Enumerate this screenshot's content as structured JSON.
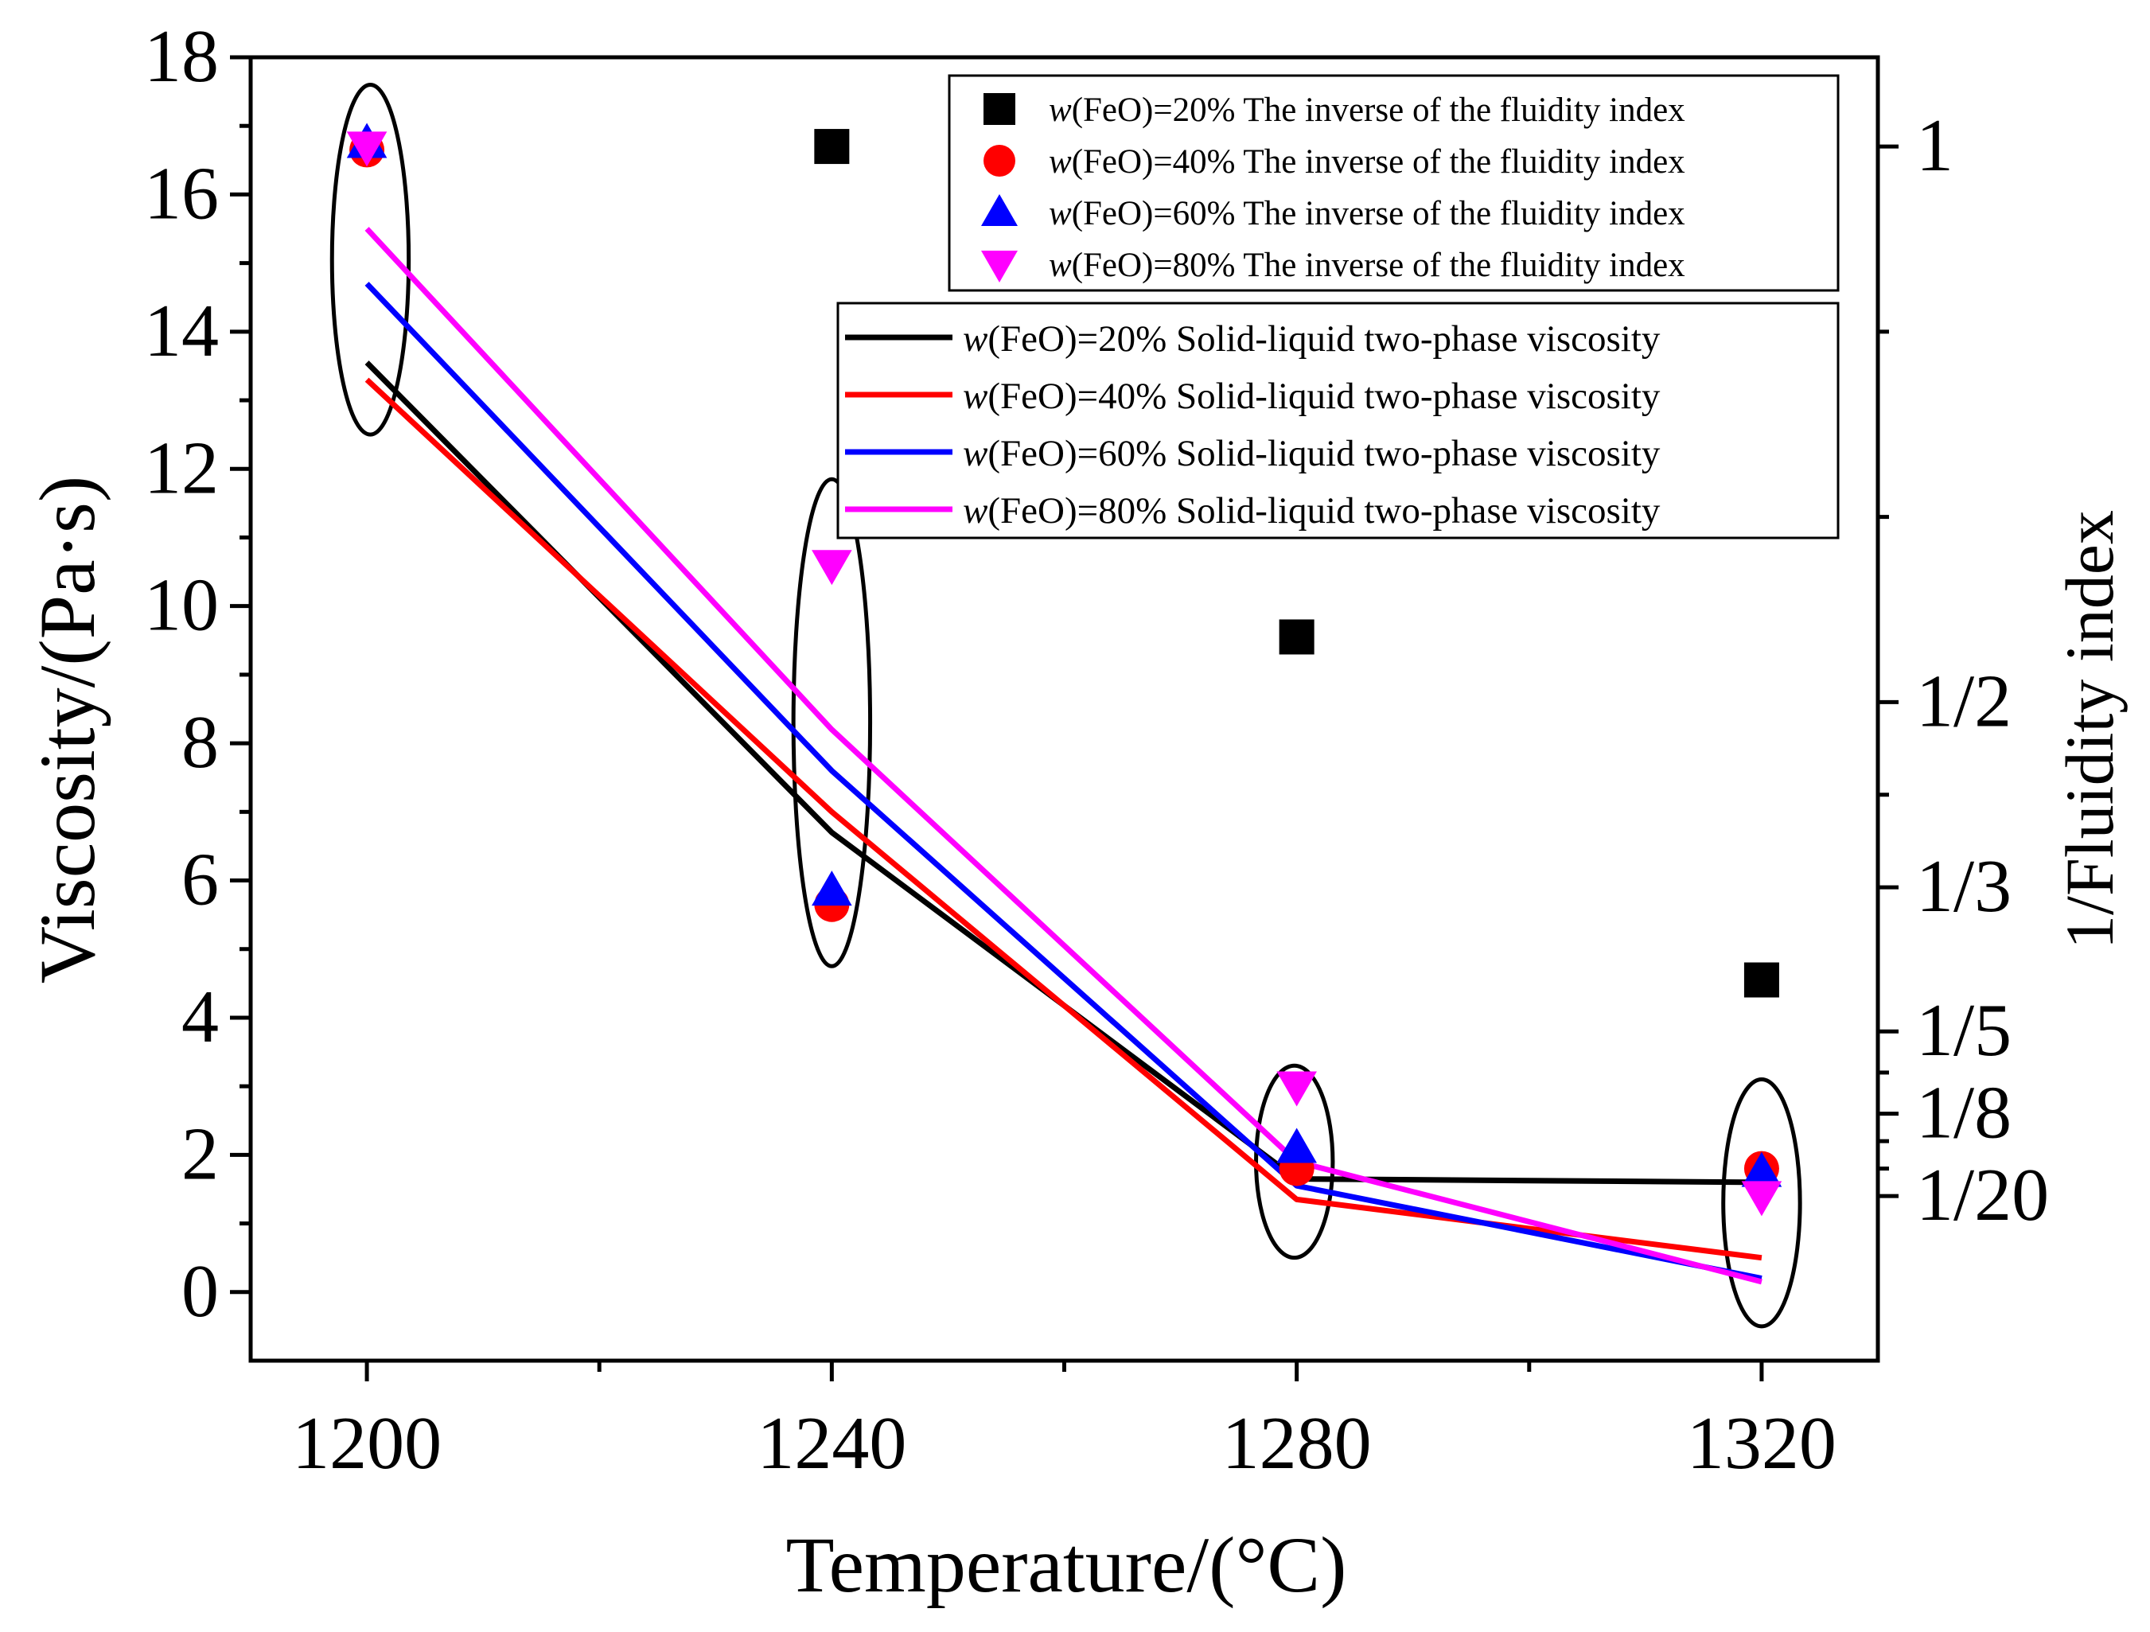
{
  "chart_data": {
    "type": "line",
    "x_axis": {
      "label": "Temperature/(°C)",
      "range": [
        1190,
        1330
      ],
      "tick_values": [
        1200,
        1240,
        1280,
        1320
      ],
      "tick_labels": [
        "1200",
        "1240",
        "1280",
        "1320"
      ],
      "minor_ticks": [
        1220,
        1260,
        1300
      ]
    },
    "y_axis_left": {
      "label": "Viscosity/(Pa·s)",
      "range": [
        -1,
        18
      ],
      "tick_values": [
        0,
        2,
        4,
        6,
        8,
        10,
        12,
        14,
        16,
        18
      ],
      "tick_labels": [
        "0",
        "2",
        "4",
        "6",
        "8",
        "10",
        "12",
        "14",
        "16",
        "18"
      ],
      "minor_ticks": [
        1,
        3,
        5,
        7,
        9,
        11,
        13,
        15,
        17
      ]
    },
    "y_axis_right": {
      "label": "1/Fluidity index",
      "labeled_ticks": [
        {
          "label": "1",
          "left_equivalent": 16.7
        },
        {
          "label": "1/2",
          "left_equivalent": 8.6
        },
        {
          "label": "1/3",
          "left_equivalent": 5.9
        },
        {
          "label": "1/5",
          "left_equivalent": 3.8
        },
        {
          "label": "1/8",
          "left_equivalent": 2.6
        },
        {
          "label": "1/20",
          "left_equivalent": 1.4
        }
      ],
      "minor_ticks_left_equivalent": [
        14.0,
        11.3,
        7.25,
        3.2,
        2.2,
        1.8
      ]
    },
    "scatter_series": [
      {
        "name": "w(FeO)=20% The inverse of the fluidity index",
        "prefix": "w",
        "suffix": "(FeO)=20% The inverse of the fluidity index",
        "marker": "square",
        "color": "#000000",
        "x": [
          1240,
          1280,
          1320
        ],
        "y": [
          16.7,
          9.55,
          4.55
        ]
      },
      {
        "name": "w(FeO)=40% The inverse of the fluidity index",
        "prefix": "w",
        "suffix": "(FeO)=40% The inverse of the fluidity index",
        "marker": "circle",
        "color": "#ff0000",
        "x": [
          1200,
          1240,
          1280,
          1320
        ],
        "y": [
          16.65,
          5.65,
          1.8,
          1.8
        ]
      },
      {
        "name": "w(FeO)=60% The inverse of the fluidity index",
        "prefix": "w",
        "suffix": "(FeO)=60% The inverse of the fluidity index",
        "marker": "triangle-up",
        "color": "#0000ff",
        "x": [
          1200,
          1240,
          1280,
          1320
        ],
        "y": [
          16.75,
          5.85,
          2.1,
          1.75
        ]
      },
      {
        "name": "w(FeO)=80% The inverse of the fluidity index",
        "prefix": "w",
        "suffix": "(FeO)=80% The inverse of the fluidity index",
        "marker": "triangle-down",
        "color": "#ff00ff",
        "x": [
          1200,
          1240,
          1280,
          1320
        ],
        "y": [
          16.7,
          10.6,
          3.0,
          1.4
        ]
      }
    ],
    "line_series": [
      {
        "name": "w(FeO)=20% Solid-liquid two-phase viscosity",
        "prefix": "w",
        "suffix": "(FeO)=20% Solid-liquid two-phase viscosity",
        "color": "#000000",
        "x": [
          1200,
          1240,
          1280,
          1320
        ],
        "y": [
          13.55,
          6.7,
          1.65,
          1.6
        ]
      },
      {
        "name": "w(FeO)=40% Solid-liquid two-phase viscosity",
        "prefix": "w",
        "suffix": "(FeO)=40% Solid-liquid two-phase viscosity",
        "color": "#ff0000",
        "x": [
          1200,
          1240,
          1280,
          1320
        ],
        "y": [
          13.3,
          7.0,
          1.35,
          0.5
        ]
      },
      {
        "name": "w(FeO)=60% Solid-liquid two-phase viscosity",
        "prefix": "w",
        "suffix": "(FeO)=60% Solid-liquid two-phase viscosity",
        "color": "#0000ff",
        "x": [
          1200,
          1240,
          1280,
          1320
        ],
        "y": [
          14.7,
          7.6,
          1.55,
          0.2
        ]
      },
      {
        "name": "w(FeO)=80% Solid-liquid two-phase viscosity",
        "prefix": "w",
        "suffix": "(FeO)=80% Solid-liquid two-phase viscosity",
        "color": "#ff00ff",
        "x": [
          1200,
          1240,
          1280,
          1320
        ],
        "y": [
          15.5,
          8.2,
          1.9,
          0.15
        ]
      }
    ],
    "annotation_ellipses": [
      {
        "cx": 1200.3,
        "cy": 15.05,
        "rx": 3.3,
        "ry": 2.55
      },
      {
        "cx": 1240.0,
        "cy": 8.3,
        "rx": 3.3,
        "ry": 3.55
      },
      {
        "cx": 1279.8,
        "cy": 1.9,
        "rx": 3.3,
        "ry": 1.4
      },
      {
        "cx": 1320.0,
        "cy": 1.3,
        "rx": 3.3,
        "ry": 1.8
      }
    ],
    "legends": [
      "top-right",
      "upper-right"
    ]
  }
}
